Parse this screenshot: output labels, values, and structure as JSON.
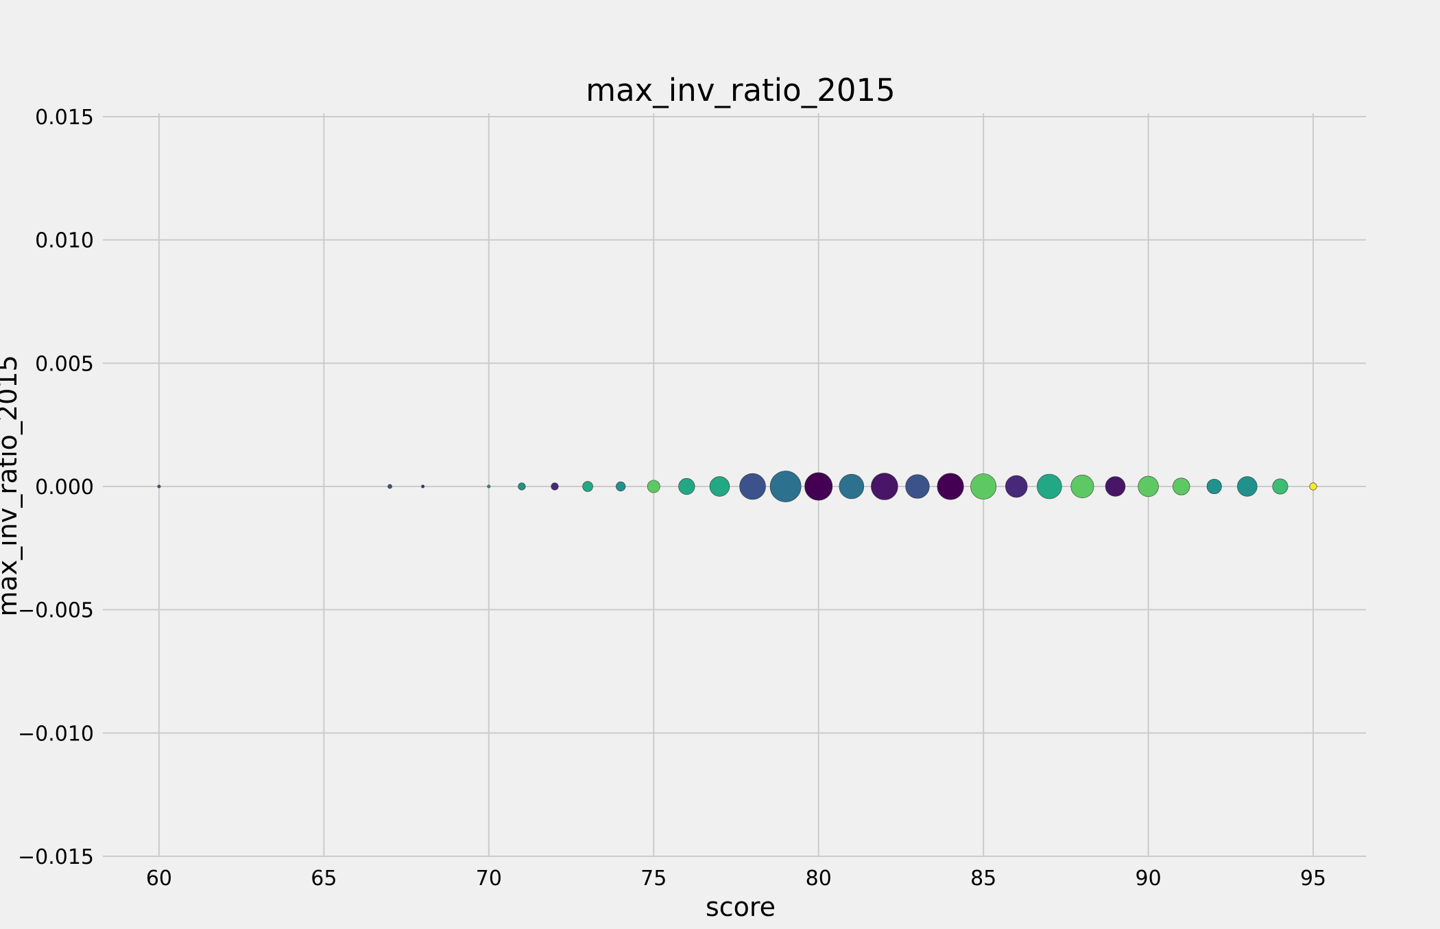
{
  "chart_data": {
    "type": "scatter",
    "title": "max_inv_ratio_2015",
    "xlabel": "score",
    "ylabel": "max_inv_ratio_2015",
    "xlim": [
      58.4,
      96.6
    ],
    "ylim": [
      -0.015,
      0.015
    ],
    "xticks": [
      60,
      65,
      70,
      75,
      80,
      85,
      90,
      95
    ],
    "xtick_labels": [
      "60",
      "65",
      "70",
      "75",
      "80",
      "85",
      "90",
      "95"
    ],
    "yticks": [
      0.015,
      0.01,
      0.005,
      0.0,
      -0.005,
      -0.01,
      -0.015
    ],
    "ytick_labels": [
      "0.015",
      "0.010",
      "0.005",
      "0.000",
      "−0.005",
      "−0.010",
      "−0.015"
    ],
    "grid": true,
    "colormap": "viridis",
    "points": [
      {
        "x": 60,
        "y": 0.0,
        "size": 1,
        "color": "#3b528b"
      },
      {
        "x": 67,
        "y": 0.0,
        "size": 2,
        "color": "#3b528b"
      },
      {
        "x": 68,
        "y": 0.0,
        "size": 1,
        "color": "#482878"
      },
      {
        "x": 70,
        "y": 0.0,
        "size": 1,
        "color": "#21918c"
      },
      {
        "x": 71,
        "y": 0.0,
        "size": 6,
        "color": "#21918c"
      },
      {
        "x": 72,
        "y": 0.0,
        "size": 6,
        "color": "#482878"
      },
      {
        "x": 73,
        "y": 0.0,
        "size": 12,
        "color": "#22a884"
      },
      {
        "x": 74,
        "y": 0.0,
        "size": 10,
        "color": "#21918c"
      },
      {
        "x": 75,
        "y": 0.0,
        "size": 18,
        "color": "#5ec962"
      },
      {
        "x": 76,
        "y": 0.0,
        "size": 30,
        "color": "#22a884"
      },
      {
        "x": 77,
        "y": 0.0,
        "size": 45,
        "color": "#22a884"
      },
      {
        "x": 78,
        "y": 0.0,
        "size": 78,
        "color": "#3b528b"
      },
      {
        "x": 79,
        "y": 0.0,
        "size": 110,
        "color": "#2c728e"
      },
      {
        "x": 80,
        "y": 0.0,
        "size": 88,
        "color": "#440154"
      },
      {
        "x": 81,
        "y": 0.0,
        "size": 70,
        "color": "#2c728e"
      },
      {
        "x": 82,
        "y": 0.0,
        "size": 82,
        "color": "#481567"
      },
      {
        "x": 83,
        "y": 0.0,
        "size": 65,
        "color": "#3b528b"
      },
      {
        "x": 84,
        "y": 0.0,
        "size": 80,
        "color": "#440154"
      },
      {
        "x": 85,
        "y": 0.0,
        "size": 75,
        "color": "#5ec962"
      },
      {
        "x": 86,
        "y": 0.0,
        "size": 55,
        "color": "#482878"
      },
      {
        "x": 87,
        "y": 0.0,
        "size": 70,
        "color": "#22a884"
      },
      {
        "x": 88,
        "y": 0.0,
        "size": 60,
        "color": "#5ec962"
      },
      {
        "x": 89,
        "y": 0.0,
        "size": 45,
        "color": "#481567"
      },
      {
        "x": 90,
        "y": 0.0,
        "size": 48,
        "color": "#5ec962"
      },
      {
        "x": 91,
        "y": 0.0,
        "size": 33,
        "color": "#5ec962"
      },
      {
        "x": 92,
        "y": 0.0,
        "size": 25,
        "color": "#21918c"
      },
      {
        "x": 93,
        "y": 0.0,
        "size": 45,
        "color": "#21918c"
      },
      {
        "x": 94,
        "y": 0.0,
        "size": 27,
        "color": "#3dbc74"
      },
      {
        "x": 95,
        "y": 0.0,
        "size": 6,
        "color": "#fde725"
      }
    ]
  }
}
